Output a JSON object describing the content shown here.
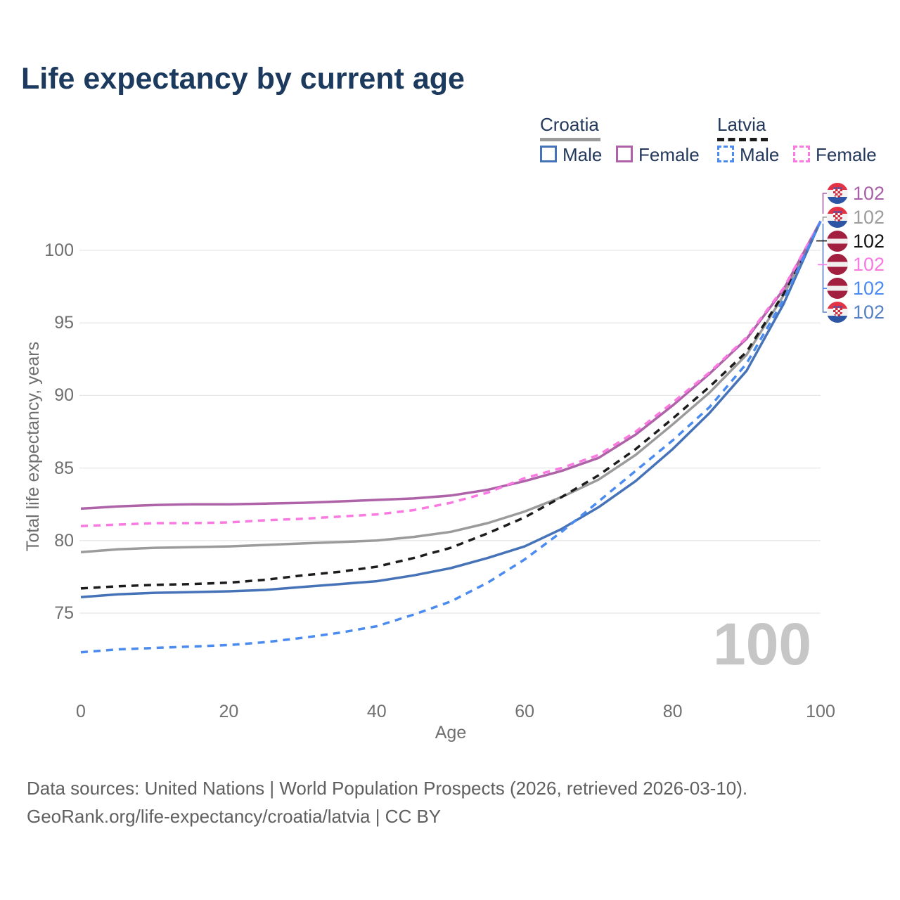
{
  "title": "Life expectancy by current age",
  "legend": {
    "groups": [
      {
        "country": "Croatia",
        "line": {
          "color": "#9b9b9b",
          "dash": false
        },
        "items": [
          {
            "label": "Male",
            "color": "#4673b8",
            "dash": false
          },
          {
            "label": "Female",
            "color": "#ae62a8",
            "dash": false
          }
        ]
      },
      {
        "country": "Latvia",
        "line": {
          "color": "#1c1c1c",
          "dash": true
        },
        "items": [
          {
            "label": "Male",
            "color": "#4b8bf0",
            "dash": true
          },
          {
            "label": "Female",
            "color": "#fb7ae1",
            "dash": true
          }
        ]
      }
    ]
  },
  "chart_data": {
    "type": "line",
    "title": "Life expectancy by current age",
    "xlabel": "Age",
    "ylabel": "Total life expectancy, years",
    "x_ticks": [
      0,
      20,
      40,
      60,
      80,
      100
    ],
    "y_ticks": [
      75,
      80,
      85,
      90,
      95,
      100
    ],
    "xlim": [
      0,
      100
    ],
    "ylim": [
      71.5,
      103.5
    ],
    "grid": true,
    "legend_position": "top-right",
    "x": [
      0,
      5,
      10,
      15,
      20,
      25,
      30,
      35,
      40,
      45,
      50,
      55,
      60,
      65,
      70,
      75,
      80,
      85,
      90,
      95,
      100
    ],
    "series": [
      {
        "name": "Croatia",
        "key": "croatia_total",
        "color": "#9b9b9b",
        "dash": false,
        "values": [
          79.2,
          79.4,
          79.5,
          79.55,
          79.6,
          79.7,
          79.8,
          79.9,
          80.0,
          80.25,
          80.6,
          81.2,
          82.0,
          83.0,
          84.2,
          85.9,
          88.0,
          90.2,
          92.8,
          96.9,
          102
        ]
      },
      {
        "name": "Latvia",
        "key": "latvia_total",
        "color": "#1c1c1c",
        "dash": true,
        "values": [
          76.7,
          76.85,
          76.95,
          77.0,
          77.1,
          77.3,
          77.6,
          77.85,
          78.2,
          78.8,
          79.5,
          80.5,
          81.6,
          83.0,
          84.5,
          86.3,
          88.4,
          90.6,
          93.0,
          97.0,
          102
        ]
      },
      {
        "name": "Croatia Female",
        "key": "croatia_female",
        "color": "#ae62a8",
        "dash": false,
        "values": [
          82.2,
          82.35,
          82.45,
          82.5,
          82.5,
          82.55,
          82.6,
          82.7,
          82.8,
          82.9,
          83.1,
          83.5,
          84.1,
          84.8,
          85.7,
          87.3,
          89.3,
          91.5,
          93.9,
          97.3,
          102
        ]
      },
      {
        "name": "Latvia Female",
        "key": "latvia_female",
        "color": "#fb7ae1",
        "dash": true,
        "values": [
          81.0,
          81.1,
          81.2,
          81.2,
          81.25,
          81.4,
          81.5,
          81.65,
          81.8,
          82.1,
          82.6,
          83.3,
          84.3,
          85.0,
          85.9,
          87.5,
          89.5,
          91.6,
          94.0,
          97.4,
          102
        ]
      },
      {
        "name": "Croatia Male",
        "key": "croatia_male",
        "color": "#4673b8",
        "dash": false,
        "values": [
          76.1,
          76.3,
          76.4,
          76.45,
          76.5,
          76.6,
          76.8,
          77.0,
          77.2,
          77.6,
          78.1,
          78.8,
          79.6,
          80.8,
          82.3,
          84.1,
          86.3,
          88.8,
          91.7,
          96.3,
          102
        ]
      },
      {
        "name": "Latvia Male",
        "key": "latvia_male",
        "color": "#4b8bf0",
        "dash": true,
        "values": [
          72.3,
          72.5,
          72.6,
          72.7,
          72.8,
          73.0,
          73.3,
          73.65,
          74.1,
          74.9,
          75.8,
          77.1,
          78.7,
          80.6,
          82.7,
          84.8,
          86.9,
          89.2,
          92.2,
          96.6,
          102
        ]
      }
    ],
    "end_labels": [
      {
        "series": "Croatia Female",
        "country": "croatia",
        "value": "102",
        "color": "#a85fa8"
      },
      {
        "series": "Croatia",
        "country": "croatia",
        "value": "102",
        "color": "#9c9c9c"
      },
      {
        "series": "Latvia",
        "country": "latvia",
        "value": "102",
        "color": "#141414"
      },
      {
        "series": "Latvia Female",
        "country": "latvia",
        "value": "102",
        "color": "#f879e2"
      },
      {
        "series": "Latvia Male",
        "country": "latvia",
        "value": "102",
        "color": "#4b8bf0"
      },
      {
        "series": "Croatia Male",
        "country": "croatia",
        "value": "102",
        "color": "#5580c2"
      }
    ]
  },
  "watermark": "100",
  "footer": {
    "line1": "Data sources: United Nations | World Population Prospects (2026, retrieved 2026-03-10).",
    "line2": "GeoRank.org/life-expectancy/croatia/latvia | CC BY"
  }
}
